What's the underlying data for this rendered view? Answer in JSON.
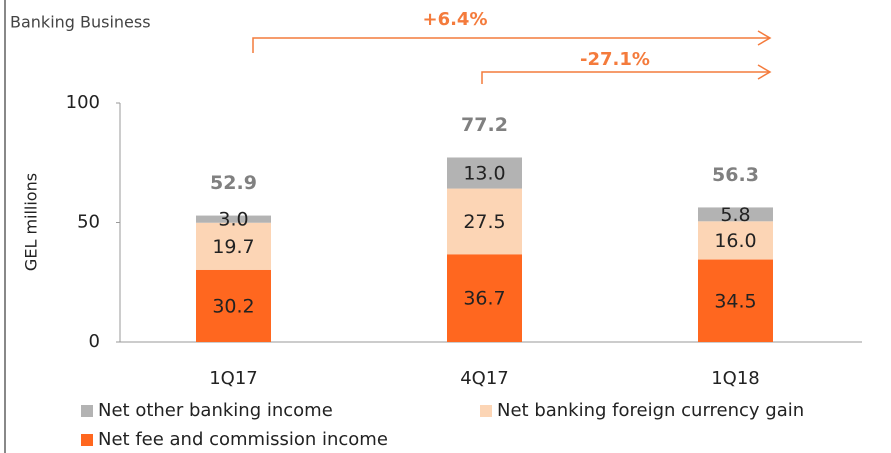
{
  "chart_data": {
    "type": "stacked_bar",
    "title": "Banking Business",
    "ylabel": "GEL millions",
    "categories": [
      "1Q17",
      "4Q17",
      "1Q18"
    ],
    "series": [
      {
        "name": "Net fee and commission income",
        "color": "#ff671f",
        "values": [
          30.2,
          36.7,
          34.5
        ]
      },
      {
        "name": "Net banking foreign currency gain",
        "color": "#fcd5b5",
        "values": [
          19.7,
          27.5,
          16
        ],
        "value_labels": [
          "19.7",
          "27.5",
          "16.0"
        ]
      },
      {
        "name": "Net other banking income",
        "color": "#b3b3b3",
        "values": [
          3,
          13,
          5.8
        ],
        "value_labels": [
          "3.0",
          "13.0",
          "5.8"
        ]
      }
    ],
    "totals": [
      52.9,
      77.2,
      56.3
    ],
    "annotations": [
      "+6.4%",
      "-27.1%"
    ],
    "ylim": [
      0,
      100
    ],
    "yticks": [
      0,
      50,
      100
    ]
  }
}
